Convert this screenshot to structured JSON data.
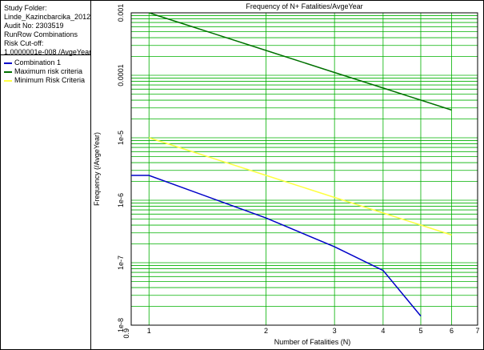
{
  "sidebar": {
    "info_lines": [
      "Study Folder:",
      "Linde_Kazincbarcika_2012",
      "Audit No: 2303519",
      "RunRow Combinations",
      "Risk Cut-off:",
      "1.0000001e-008 /AvgeYear"
    ]
  },
  "chart_data": {
    "type": "line",
    "title": "Frequency of N+ Fatalities/AvgeYear",
    "xlabel": "Number of Fatalities (N)",
    "ylabel": "Frequency (/AvgeYear)",
    "x_scale": "log",
    "y_scale": "log",
    "xlim": [
      0.9,
      7
    ],
    "ylim": [
      1e-08,
      0.001
    ],
    "x_ticks": [
      0.9,
      1,
      2,
      3,
      4,
      5,
      6,
      7
    ],
    "x_tick_labels": [
      "0.9",
      "1",
      "2",
      "3",
      "4",
      "5",
      "6",
      "7"
    ],
    "y_ticks": [
      1e-08,
      1e-07,
      1e-06,
      1e-05,
      0.0001,
      0.001
    ],
    "y_tick_labels": [
      "1e-8",
      "1e-7",
      "1e-6",
      "1e-5",
      "0.0001",
      "0.001"
    ],
    "grid": true,
    "legend_position": "left-sidebar",
    "series": [
      {
        "name": "Combination 1",
        "color": "#0000c8",
        "x": [
          0.9,
          1,
          2,
          3,
          4,
          5
        ],
        "y": [
          2.5e-06,
          2.5e-06,
          5.2e-07,
          1.8e-07,
          7.5e-08,
          1.4e-08
        ]
      },
      {
        "name": "Maximum risk criteria",
        "color": "#007000",
        "x": [
          1,
          2,
          3,
          4,
          5,
          6
        ],
        "y": [
          0.001,
          0.00025,
          0.000111,
          6.25e-05,
          4e-05,
          2.78e-05
        ]
      },
      {
        "name": "Minimum Risk Criteria",
        "color": "#ffff40",
        "x": [
          1,
          2,
          3,
          4,
          5,
          6
        ],
        "y": [
          1e-05,
          2.5e-06,
          1.11e-06,
          6.25e-07,
          4e-07,
          2.78e-07
        ]
      }
    ]
  }
}
